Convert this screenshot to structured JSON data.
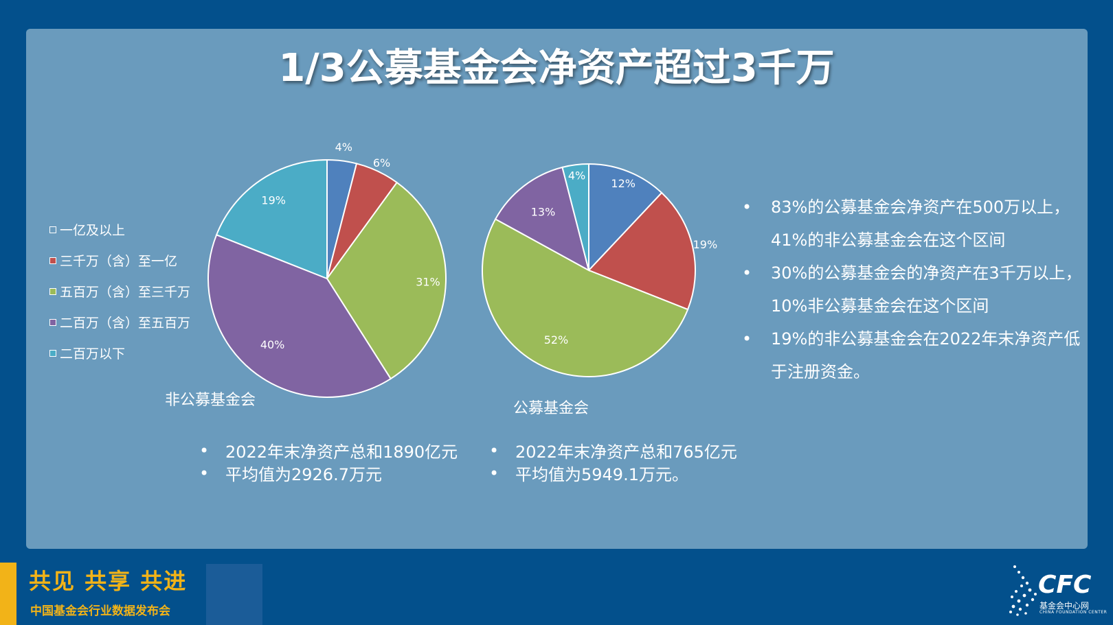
{
  "title": "1/3公募基金会净资产超过3千万",
  "legend": [
    {
      "label": "一亿及以上",
      "color": "#4f81bd"
    },
    {
      "label": "三千万（含）至一亿",
      "color": "#c0504d"
    },
    {
      "label": "五百万（含）至三千万",
      "color": "#9bbb59"
    },
    {
      "label": "二百万（含）至五百万",
      "color": "#8064a2"
    },
    {
      "label": "二百万以下",
      "color": "#4bacc6"
    }
  ],
  "chart_data": [
    {
      "type": "pie",
      "name": "非公募基金会",
      "categories": [
        "一亿及以上",
        "三千万（含）至一亿",
        "五百万（含）至三千万",
        "二百万（含）至五百万",
        "二百万以下"
      ],
      "values": [
        4,
        6,
        31,
        40,
        19
      ],
      "labels": [
        "4%",
        "6%",
        "31%",
        "40%",
        "19%"
      ]
    },
    {
      "type": "pie",
      "name": "公募基金会",
      "categories": [
        "一亿及以上",
        "三千万（含）至一亿",
        "五百万（含）至三千万",
        "二百万（含）至五百万",
        "二百万以下"
      ],
      "values": [
        12,
        19,
        52,
        13,
        4
      ],
      "labels": [
        "12%",
        "19%",
        "52%",
        "13%",
        "4%"
      ]
    }
  ],
  "left_notes": [
    "2022年末净资产总和1890亿元",
    "平均值为2926.7万元"
  ],
  "mid_notes": [
    "2022年末净资产总和765亿元",
    "平均值为5949.1万元。"
  ],
  "right_notes": [
    "83%的公募基金会净资产在500万以上，41%的非公募基金会在这个区间",
    "30%的公募基金会的净资产在3千万以上，10%非公募基金会在这个区间",
    "19%的非公募基金会在2022年末净资产低于注册资金。"
  ],
  "bullet": "•",
  "footer": {
    "slogan": "共见 共享 共进",
    "subtitle": "中国基金会行业数据发布会"
  },
  "logo": {
    "text": "CFC",
    "subtitle": "基金会中心网",
    "english": "CHINA FOUNDATION CENTER",
    "icon": "cfc-logo-icon"
  }
}
